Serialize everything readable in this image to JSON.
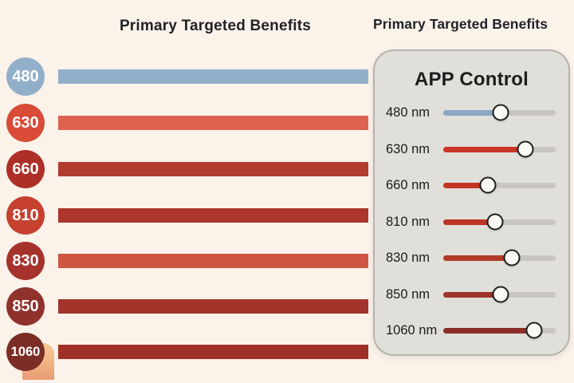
{
  "page": {
    "background": "#fbf2ea"
  },
  "left_panel": {
    "title": "Primary Targeted Benefits",
    "rows": [
      {
        "label": "480",
        "badge_color": "#92afc9",
        "bar_color": "#92afc9"
      },
      {
        "label": "630",
        "badge_color": "#d94b37",
        "bar_color": "#dd6350"
      },
      {
        "label": "660",
        "badge_color": "#ae2f27",
        "bar_color": "#b23b30"
      },
      {
        "label": "810",
        "badge_color": "#c64130",
        "bar_color": "#ac352c"
      },
      {
        "label": "830",
        "badge_color": "#a5322b",
        "bar_color": "#cf5643"
      },
      {
        "label": "850",
        "badge_color": "#8f322b",
        "bar_color": "#a2342c"
      },
      {
        "label": "1060",
        "badge_color": "#7b2d26",
        "bar_color": "#9e3026"
      }
    ]
  },
  "right_panel": {
    "title": "Primary Targeted Benefits",
    "card_title": "APP Control",
    "track_color": "#c9c6c1",
    "sliders": [
      {
        "label": "480 nm",
        "value_pct": 51,
        "fill_color": "#88a8c4"
      },
      {
        "label": "630 nm",
        "value_pct": 73,
        "fill_color": "#c93526"
      },
      {
        "label": "660 nm",
        "value_pct": 40,
        "fill_color": "#c43524"
      },
      {
        "label": "810 nm",
        "value_pct": 46,
        "fill_color": "#bb3426"
      },
      {
        "label": "830 nm",
        "value_pct": 61,
        "fill_color": "#b03a28"
      },
      {
        "label": "850 nm",
        "value_pct": 51,
        "fill_color": "#9c332a"
      },
      {
        "label": "1060 nm",
        "value_pct": 81,
        "fill_color": "#8a2f28"
      }
    ]
  }
}
